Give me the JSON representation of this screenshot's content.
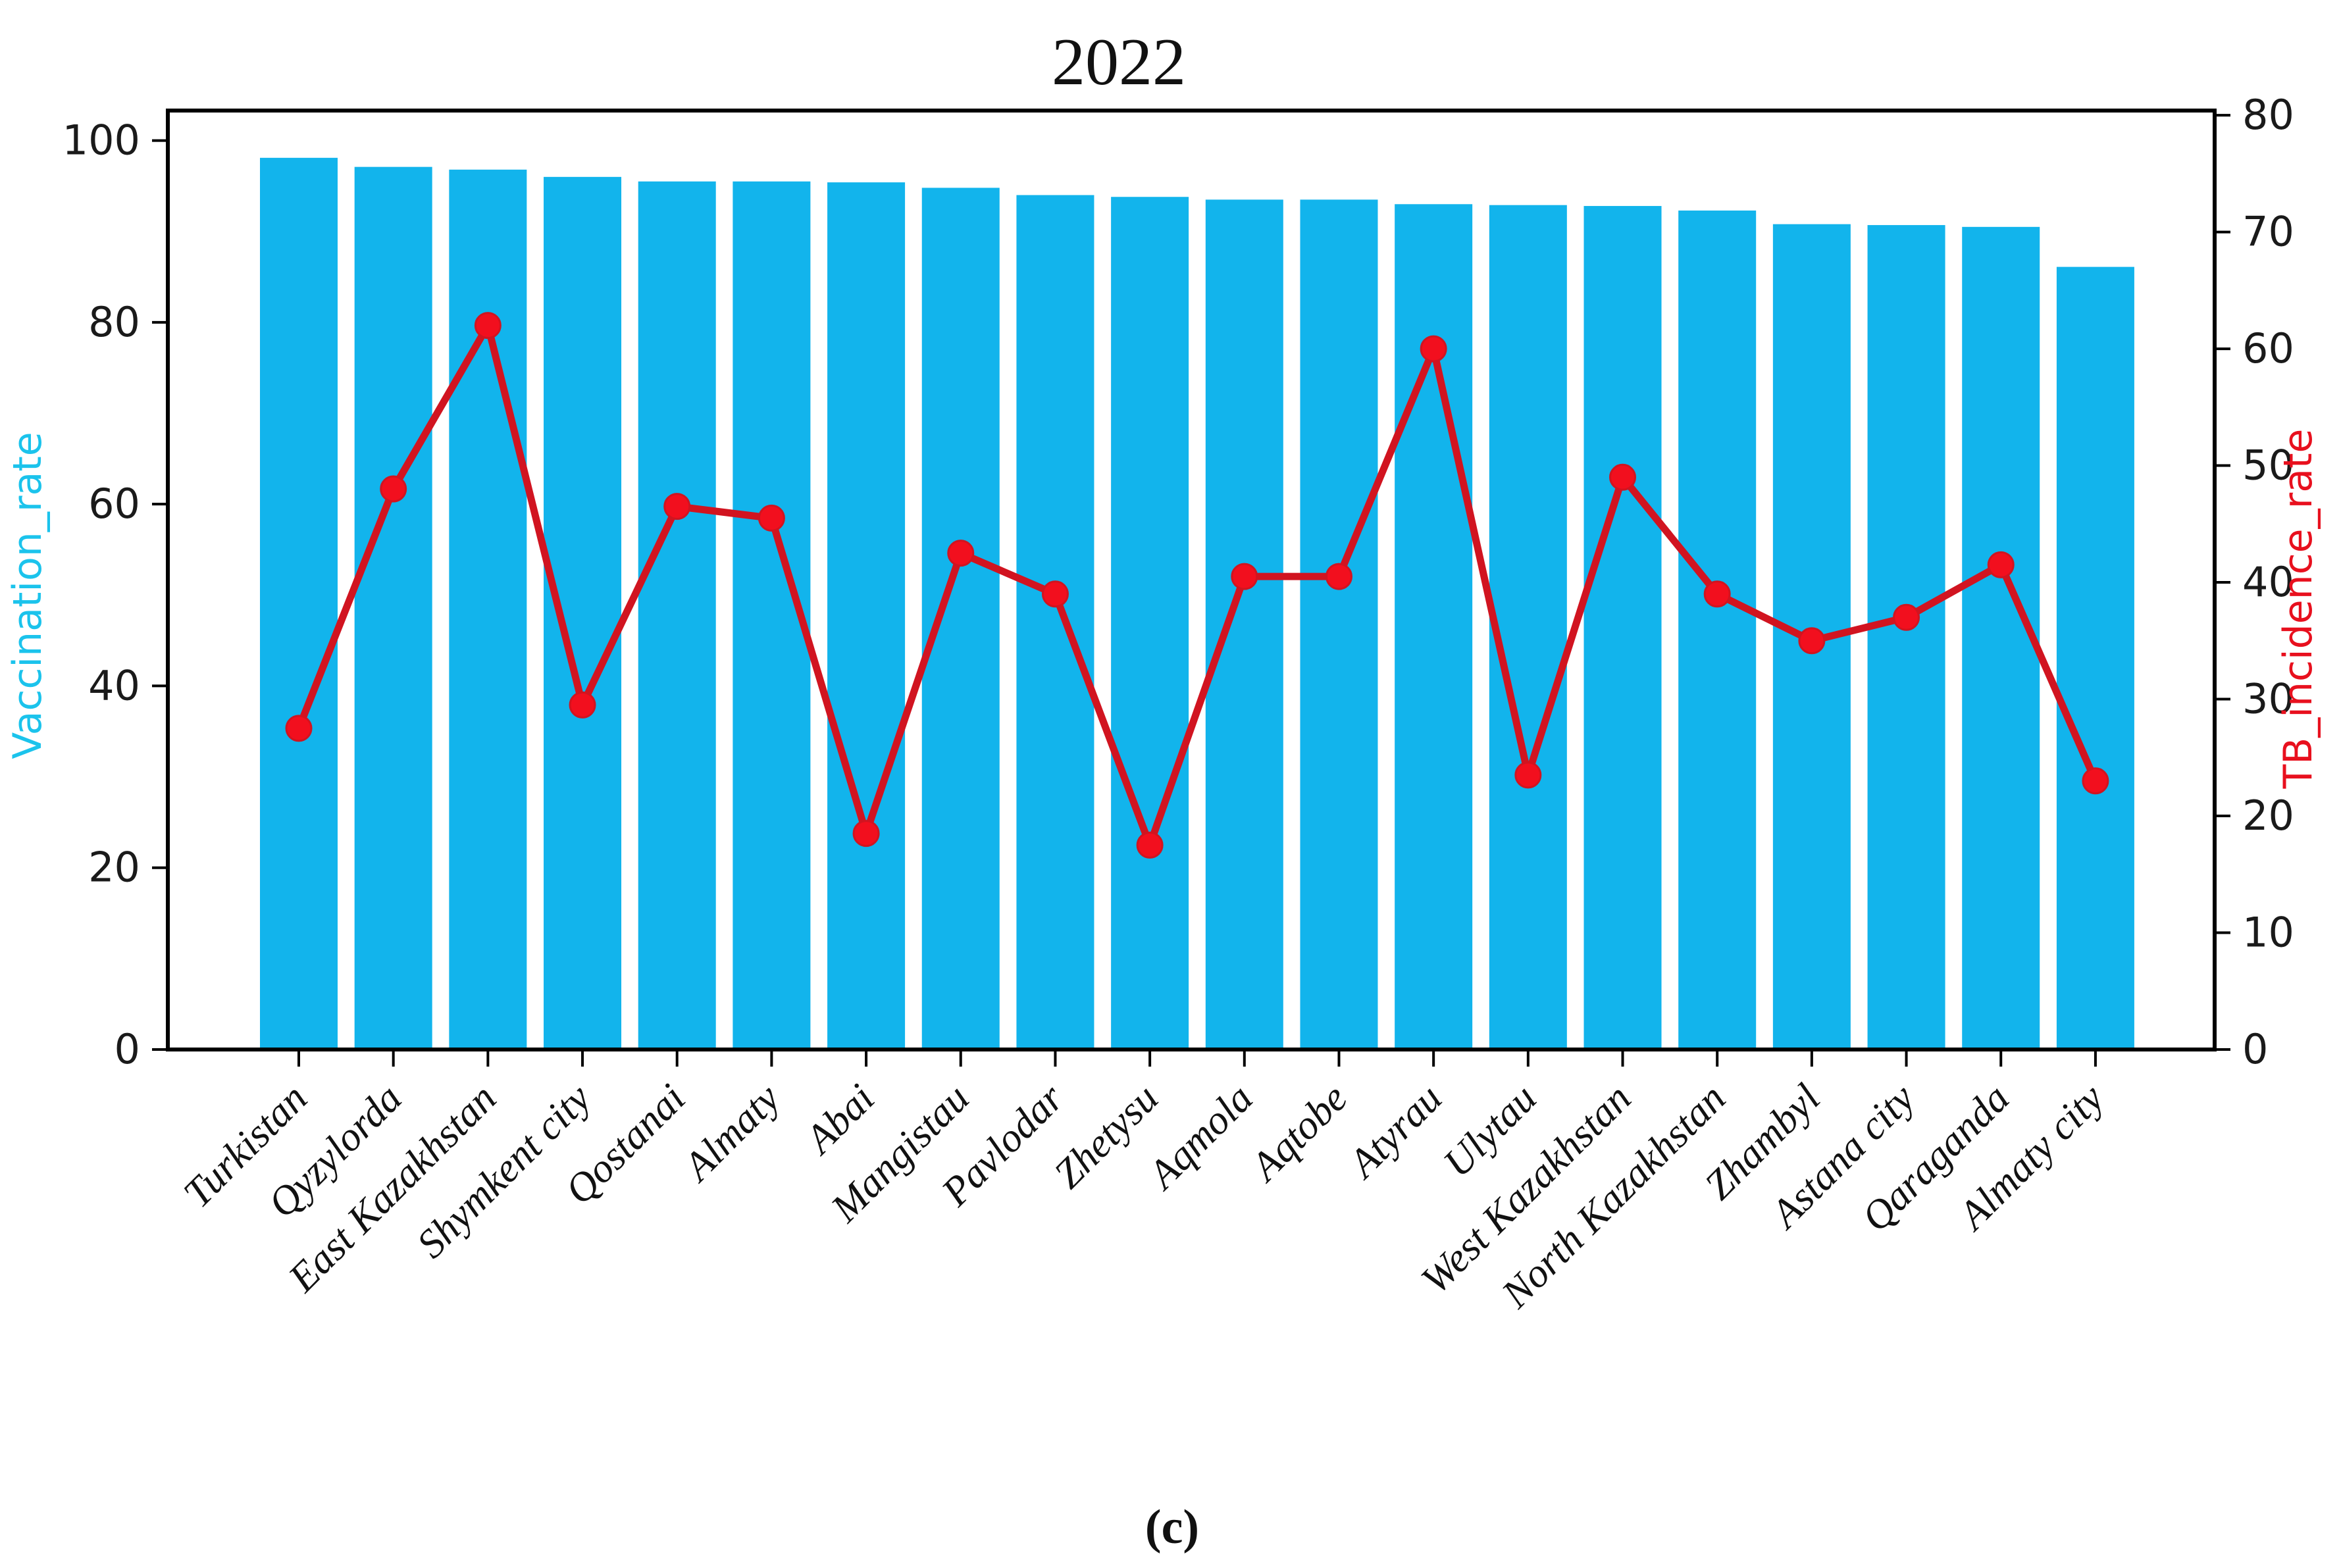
{
  "title": "2022",
  "caption": "(c)",
  "chart_data": {
    "type": "bar",
    "subtype": "bar+line dual axis",
    "title": "2022",
    "caption": "(c)",
    "grid": false,
    "legend_position": "none",
    "categories": [
      "Turkistan",
      "Qyzylorda",
      "East Kazakhstan",
      "Shymkent city",
      "Qostanai",
      "Almaty",
      "Abai",
      "Mangistau",
      "Pavlodar",
      "Zhetysu",
      "Aqmola",
      "Aqtobe",
      "Atyrau",
      "Ulytau",
      "West Kazakhstan",
      "North Kazakhstan",
      "Zhambyl",
      "Astana city",
      "Qaraganda",
      "Almaty city"
    ],
    "series": [
      {
        "name": "Vaccination_rate",
        "type": "bar",
        "axis": "left",
        "color": "#12b4ec",
        "values": [
          98.1,
          97.1,
          96.8,
          96.0,
          95.5,
          95.5,
          95.4,
          94.8,
          94.0,
          93.8,
          93.5,
          93.5,
          93.0,
          92.9,
          92.8,
          92.3,
          90.8,
          90.7,
          90.5,
          86.1
        ]
      },
      {
        "name": "TB_incidence_rate",
        "type": "line",
        "axis": "right",
        "color": "#d11420",
        "marker_color": "#f20f1e",
        "values": [
          27.5,
          48,
          62,
          29.5,
          46.5,
          45.5,
          18.5,
          42.5,
          39,
          17.5,
          40.5,
          40.5,
          60,
          23.5,
          49,
          39,
          35,
          37,
          41.5,
          23
        ]
      }
    ],
    "left_axis": {
      "label": "Vaccination_rate",
      "label_color": "#1bc3ec",
      "min": 0,
      "max": 103.3,
      "ticks": [
        0,
        20,
        40,
        60,
        80,
        100
      ]
    },
    "right_axis": {
      "label": "TB_incidence_rate",
      "label_color": "#e8101e",
      "min": 0,
      "max": 80.4,
      "ticks": [
        0,
        10,
        20,
        30,
        40,
        50,
        60,
        70,
        80
      ]
    },
    "x_axis": {
      "tick_label_rotation_deg": 45
    }
  }
}
